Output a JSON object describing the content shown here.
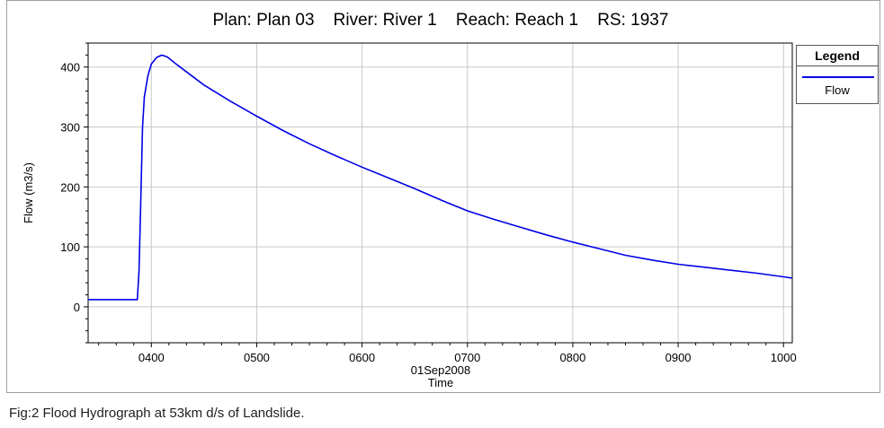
{
  "caption": "Fig:2 Flood Hydrograph at 53km d/s of Landslide.",
  "legend": {
    "title": "Legend",
    "items": [
      {
        "label": "Flow",
        "color": "#0000e6"
      }
    ]
  },
  "chart_data": {
    "type": "line",
    "title": "Plan: Plan 03    River: River 1    Reach: Reach 1    RS: 1937",
    "xlabel": "Time",
    "x_date_label": "01Sep2008",
    "ylabel": "Flow (m3/s)",
    "xlim": [
      "03:24",
      "10:05"
    ],
    "ylim": [
      -60,
      440
    ],
    "x_ticks": [
      "0400",
      "0500",
      "0600",
      "0700",
      "0800",
      "0900",
      "1000"
    ],
    "y_ticks": [
      0,
      100,
      200,
      300,
      400
    ],
    "grid": true,
    "legend_position": "right",
    "series": [
      {
        "name": "Flow",
        "color": "#0000e6",
        "points": [
          [
            "03:24",
            12
          ],
          [
            "03:52",
            12
          ],
          [
            "03:53",
            60
          ],
          [
            "03:54",
            180
          ],
          [
            "03:55",
            300
          ],
          [
            "03:56",
            350
          ],
          [
            "03:58",
            385
          ],
          [
            "04:00",
            405
          ],
          [
            "04:03",
            416
          ],
          [
            "04:06",
            420
          ],
          [
            "04:09",
            417
          ],
          [
            "04:15",
            403
          ],
          [
            "04:30",
            370
          ],
          [
            "04:45",
            343
          ],
          [
            "05:00",
            318
          ],
          [
            "05:15",
            294
          ],
          [
            "05:30",
            272
          ],
          [
            "05:45",
            252
          ],
          [
            "06:00",
            233
          ],
          [
            "06:15",
            215
          ],
          [
            "06:30",
            197
          ],
          [
            "06:45",
            178
          ],
          [
            "07:00",
            160
          ],
          [
            "07:15",
            146
          ],
          [
            "07:30",
            133
          ],
          [
            "07:45",
            120
          ],
          [
            "08:00",
            108
          ],
          [
            "08:15",
            97
          ],
          [
            "08:30",
            86
          ],
          [
            "08:45",
            78
          ],
          [
            "09:00",
            71
          ],
          [
            "09:15",
            66
          ],
          [
            "09:30",
            61
          ],
          [
            "09:45",
            56
          ],
          [
            "10:00",
            50
          ],
          [
            "10:05",
            48
          ]
        ]
      }
    ]
  }
}
